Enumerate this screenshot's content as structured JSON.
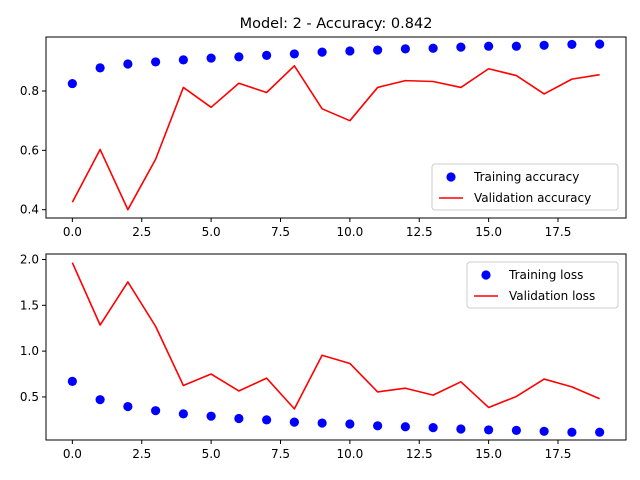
{
  "figure": {
    "title": "Model: 2 - Accuracy: 0.842"
  },
  "colors": {
    "training": "#0000ff",
    "validation": "#ff0000"
  },
  "chart_data": [
    {
      "type": "line",
      "title": "Model: 2 - Accuracy: 0.842",
      "xlabel": "",
      "ylabel": "",
      "xlim": [
        -0.95,
        19.95
      ],
      "ylim": [
        0.372,
        0.982
      ],
      "x_ticks": [
        0.0,
        2.5,
        5.0,
        7.5,
        10.0,
        12.5,
        15.0,
        17.5
      ],
      "x_tick_labels": [
        "0.0",
        "2.5",
        "5.0",
        "7.5",
        "10.0",
        "12.5",
        "15.0",
        "17.5"
      ],
      "y_ticks": [
        0.4,
        0.6,
        0.8
      ],
      "y_tick_labels": [
        "0.4",
        "0.6",
        "0.8"
      ],
      "grid": false,
      "legend_position": "lower-right",
      "series": [
        {
          "name": "Training accuracy",
          "style": "markers",
          "color": "#0000ff",
          "x": [
            0,
            1,
            2,
            3,
            4,
            5,
            6,
            7,
            8,
            9,
            10,
            11,
            12,
            13,
            14,
            15,
            16,
            17,
            18,
            19
          ],
          "values": [
            0.825,
            0.878,
            0.891,
            0.898,
            0.905,
            0.911,
            0.915,
            0.92,
            0.925,
            0.931,
            0.935,
            0.938,
            0.942,
            0.944,
            0.948,
            0.951,
            0.951,
            0.954,
            0.957,
            0.958
          ]
        },
        {
          "name": "Validation accuracy",
          "style": "line",
          "color": "#ff0000",
          "x": [
            0,
            1,
            2,
            3,
            4,
            5,
            6,
            7,
            8,
            9,
            10,
            11,
            12,
            13,
            14,
            15,
            16,
            17,
            18,
            19
          ],
          "values": [
            0.425,
            0.603,
            0.4,
            0.57,
            0.812,
            0.745,
            0.826,
            0.795,
            0.885,
            0.74,
            0.7,
            0.812,
            0.835,
            0.832,
            0.812,
            0.875,
            0.852,
            0.79,
            0.84,
            0.855
          ]
        }
      ]
    },
    {
      "type": "line",
      "title": "",
      "xlabel": "",
      "ylabel": "",
      "xlim": [
        -0.95,
        19.95
      ],
      "ylim": [
        0.03,
        2.06
      ],
      "x_ticks": [
        0.0,
        2.5,
        5.0,
        7.5,
        10.0,
        12.5,
        15.0,
        17.5
      ],
      "x_tick_labels": [
        "0.0",
        "2.5",
        "5.0",
        "7.5",
        "10.0",
        "12.5",
        "15.0",
        "17.5"
      ],
      "y_ticks": [
        0.5,
        1.0,
        1.5,
        2.0
      ],
      "y_tick_labels": [
        "0.5",
        "1.0",
        "1.5",
        "2.0"
      ],
      "grid": false,
      "legend_position": "upper-right",
      "series": [
        {
          "name": "Training loss",
          "style": "markers",
          "color": "#0000ff",
          "x": [
            0,
            1,
            2,
            3,
            4,
            5,
            6,
            7,
            8,
            9,
            10,
            11,
            12,
            13,
            14,
            15,
            16,
            17,
            18,
            19
          ],
          "values": [
            0.67,
            0.47,
            0.395,
            0.35,
            0.315,
            0.29,
            0.265,
            0.25,
            0.225,
            0.215,
            0.205,
            0.185,
            0.175,
            0.165,
            0.15,
            0.14,
            0.135,
            0.125,
            0.115,
            0.115
          ]
        },
        {
          "name": "Validation loss",
          "style": "line",
          "color": "#ff0000",
          "x": [
            0,
            1,
            2,
            3,
            4,
            5,
            6,
            7,
            8,
            9,
            10,
            11,
            12,
            13,
            14,
            15,
            16,
            17,
            18,
            19
          ],
          "values": [
            1.965,
            1.285,
            1.755,
            1.27,
            0.625,
            0.75,
            0.565,
            0.705,
            0.37,
            0.955,
            0.865,
            0.555,
            0.595,
            0.52,
            0.665,
            0.385,
            0.505,
            0.695,
            0.61,
            0.48
          ]
        }
      ]
    }
  ]
}
